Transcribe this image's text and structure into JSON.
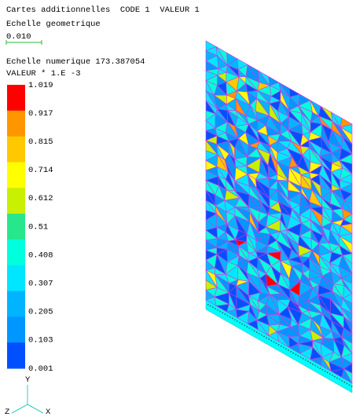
{
  "header": {
    "title": "Cartes additionnelles  CODE 1  VALEUR 1",
    "geometric_scale_label": "Echelle geometrique",
    "geometric_scale_value": "0.010",
    "numeric_scale": "Echelle numerique 173.387054",
    "value_factor": "VALEUR * 1.E -3"
  },
  "colorbar": {
    "colors": [
      "#ff0000",
      "#ff9600",
      "#ffc800",
      "#ffff00",
      "#c8f000",
      "#28e68c",
      "#00ffdc",
      "#00e6ff",
      "#00b4ff",
      "#0096ff",
      "#0050ff"
    ],
    "labels": [
      "1.019",
      "0.917",
      "0.815",
      "0.714",
      "0.612",
      "0.51",
      "0.408",
      "0.307",
      "0.205",
      "0.103",
      "0.001"
    ]
  },
  "axes": {
    "y": "Y",
    "z": "Z",
    "x": "X"
  }
}
